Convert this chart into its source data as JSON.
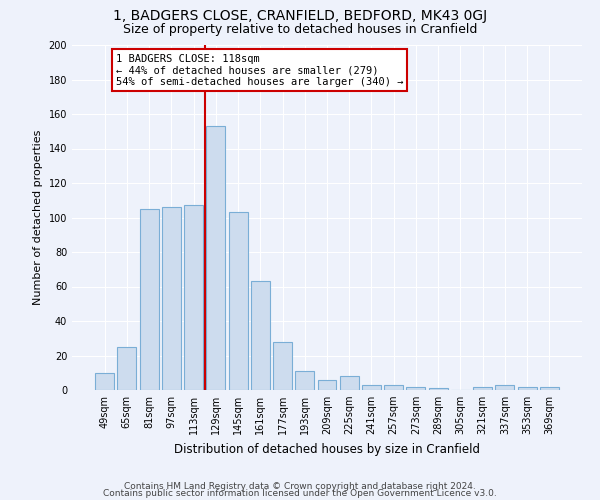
{
  "title": "1, BADGERS CLOSE, CRANFIELD, BEDFORD, MK43 0GJ",
  "subtitle": "Size of property relative to detached houses in Cranfield",
  "xlabel": "Distribution of detached houses by size in Cranfield",
  "ylabel": "Number of detached properties",
  "categories": [
    "49sqm",
    "65sqm",
    "81sqm",
    "97sqm",
    "113sqm",
    "129sqm",
    "145sqm",
    "161sqm",
    "177sqm",
    "193sqm",
    "209sqm",
    "225sqm",
    "241sqm",
    "257sqm",
    "273sqm",
    "289sqm",
    "305sqm",
    "321sqm",
    "337sqm",
    "353sqm",
    "369sqm"
  ],
  "values": [
    10,
    25,
    105,
    106,
    107,
    153,
    103,
    63,
    28,
    11,
    6,
    8,
    3,
    3,
    2,
    1,
    0,
    2,
    3,
    2,
    2
  ],
  "bar_color": "#cddcee",
  "bar_edge_color": "#7aaed6",
  "annotation_text": "1 BADGERS CLOSE: 118sqm\n← 44% of detached houses are smaller (279)\n54% of semi-detached houses are larger (340) →",
  "annotation_box_color": "#ffffff",
  "annotation_box_edge_color": "#cc0000",
  "vline_color": "#cc0000",
  "vline_x_index": 4.5,
  "ylim": [
    0,
    200
  ],
  "yticks": [
    0,
    20,
    40,
    60,
    80,
    100,
    120,
    140,
    160,
    180,
    200
  ],
  "footer_line1": "Contains HM Land Registry data © Crown copyright and database right 2024.",
  "footer_line2": "Contains public sector information licensed under the Open Government Licence v3.0.",
  "title_fontsize": 10,
  "subtitle_fontsize": 9,
  "xlabel_fontsize": 8.5,
  "ylabel_fontsize": 8,
  "tick_fontsize": 7,
  "annotation_fontsize": 7.5,
  "footer_fontsize": 6.5,
  "bg_color": "#eef2fb",
  "grid_color": "#ffffff"
}
